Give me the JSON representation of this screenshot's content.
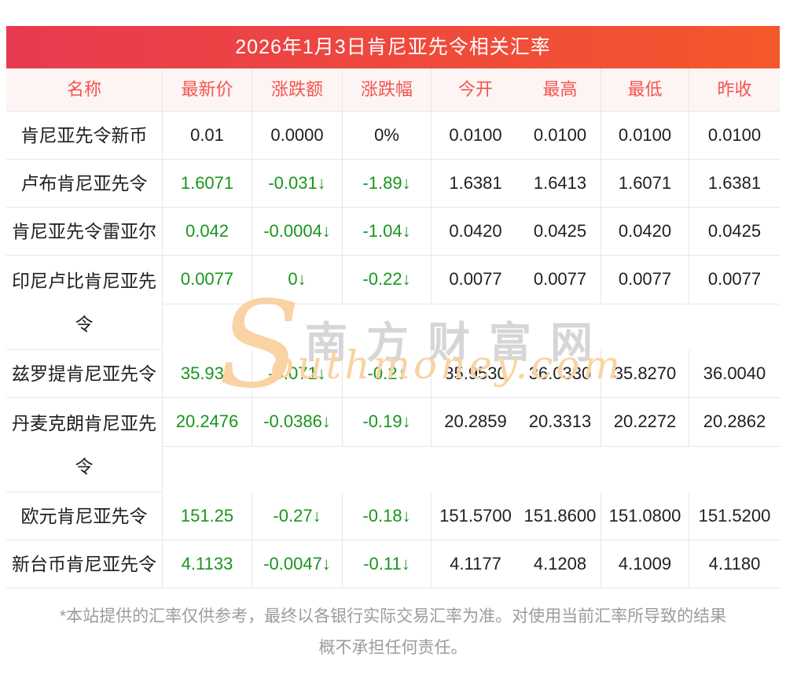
{
  "header": {
    "title": "2026年1月3日肯尼亚先令相关汇率"
  },
  "table": {
    "columns": [
      "名称",
      "最新价",
      "涨跌额",
      "涨跌幅",
      "今开",
      "最高",
      "最低",
      "昨收"
    ],
    "rows": [
      {
        "name": "肯尼亚先令新币",
        "latest": "0.01",
        "change": "0.0000",
        "change_pct": "0%",
        "open": "0.0100",
        "high": "0.0100",
        "low": "0.0100",
        "prev_close": "0.0100",
        "down": false,
        "tall": false
      },
      {
        "name": "卢布肯尼亚先令",
        "latest": "1.6071",
        "change": "-0.031↓",
        "change_pct": "-1.89↓",
        "open": "1.6381",
        "high": "1.6413",
        "low": "1.6071",
        "prev_close": "1.6381",
        "down": true,
        "tall": false
      },
      {
        "name": "肯尼亚先令雷亚尔",
        "latest": "0.042",
        "change": "-0.0004↓",
        "change_pct": "-1.04↓",
        "open": "0.0420",
        "high": "0.0425",
        "low": "0.0420",
        "prev_close": "0.0425",
        "down": true,
        "tall": false
      },
      {
        "name": "印尼卢比肯尼亚先令",
        "latest": "0.0077",
        "change": "0↓",
        "change_pct": "-0.22↓",
        "open": "0.0077",
        "high": "0.0077",
        "low": "0.0077",
        "prev_close": "0.0077",
        "down": true,
        "tall": true
      },
      {
        "name": "兹罗提肯尼亚先令",
        "latest": "35.933",
        "change": "-0.071↓",
        "change_pct": "-0.2↓",
        "open": "35.9530",
        "high": "36.0330",
        "low": "35.8270",
        "prev_close": "36.0040",
        "down": true,
        "tall": false
      },
      {
        "name": "丹麦克朗肯尼亚先令",
        "latest": "20.2476",
        "change": "-0.0386↓",
        "change_pct": "-0.19↓",
        "open": "20.2859",
        "high": "20.3313",
        "low": "20.2272",
        "prev_close": "20.2862",
        "down": true,
        "tall": true
      },
      {
        "name": "欧元肯尼亚先令",
        "latest": "151.25",
        "change": "-0.27↓",
        "change_pct": "-0.18↓",
        "open": "151.5700",
        "high": "151.8600",
        "low": "151.0800",
        "prev_close": "151.5200",
        "down": true,
        "tall": false
      },
      {
        "name": "新台币肯尼亚先令",
        "latest": "4.1133",
        "change": "-0.0047↓",
        "change_pct": "-0.11↓",
        "open": "4.1177",
        "high": "4.1208",
        "low": "4.1009",
        "prev_close": "4.1180",
        "down": true,
        "tall": false
      }
    ]
  },
  "watermark": {
    "s_glyph": "S",
    "chinese": "南方财富网",
    "english": "outhmoney.com"
  },
  "disclaimer": {
    "line1": "*本站提供的汇率仅供参考，最终以各银行实际交易汇率为准。对使用当前汇率所导致的结果",
    "line2": "概不承担任何责任。"
  },
  "colors": {
    "title_gradient_left": "#e83a50",
    "title_gradient_right": "#f4582b",
    "title_text": "#ffffff",
    "header_bg": "#fdf4f4",
    "header_text": "#f4534f",
    "body_text": "#1f1f1f",
    "down_green": "#18951d",
    "border": "#e6e7ef",
    "disclaimer_text": "#9c9c9c",
    "watermark_peach": "#f9d3a3",
    "watermark_gray": "#d6d6d6"
  }
}
